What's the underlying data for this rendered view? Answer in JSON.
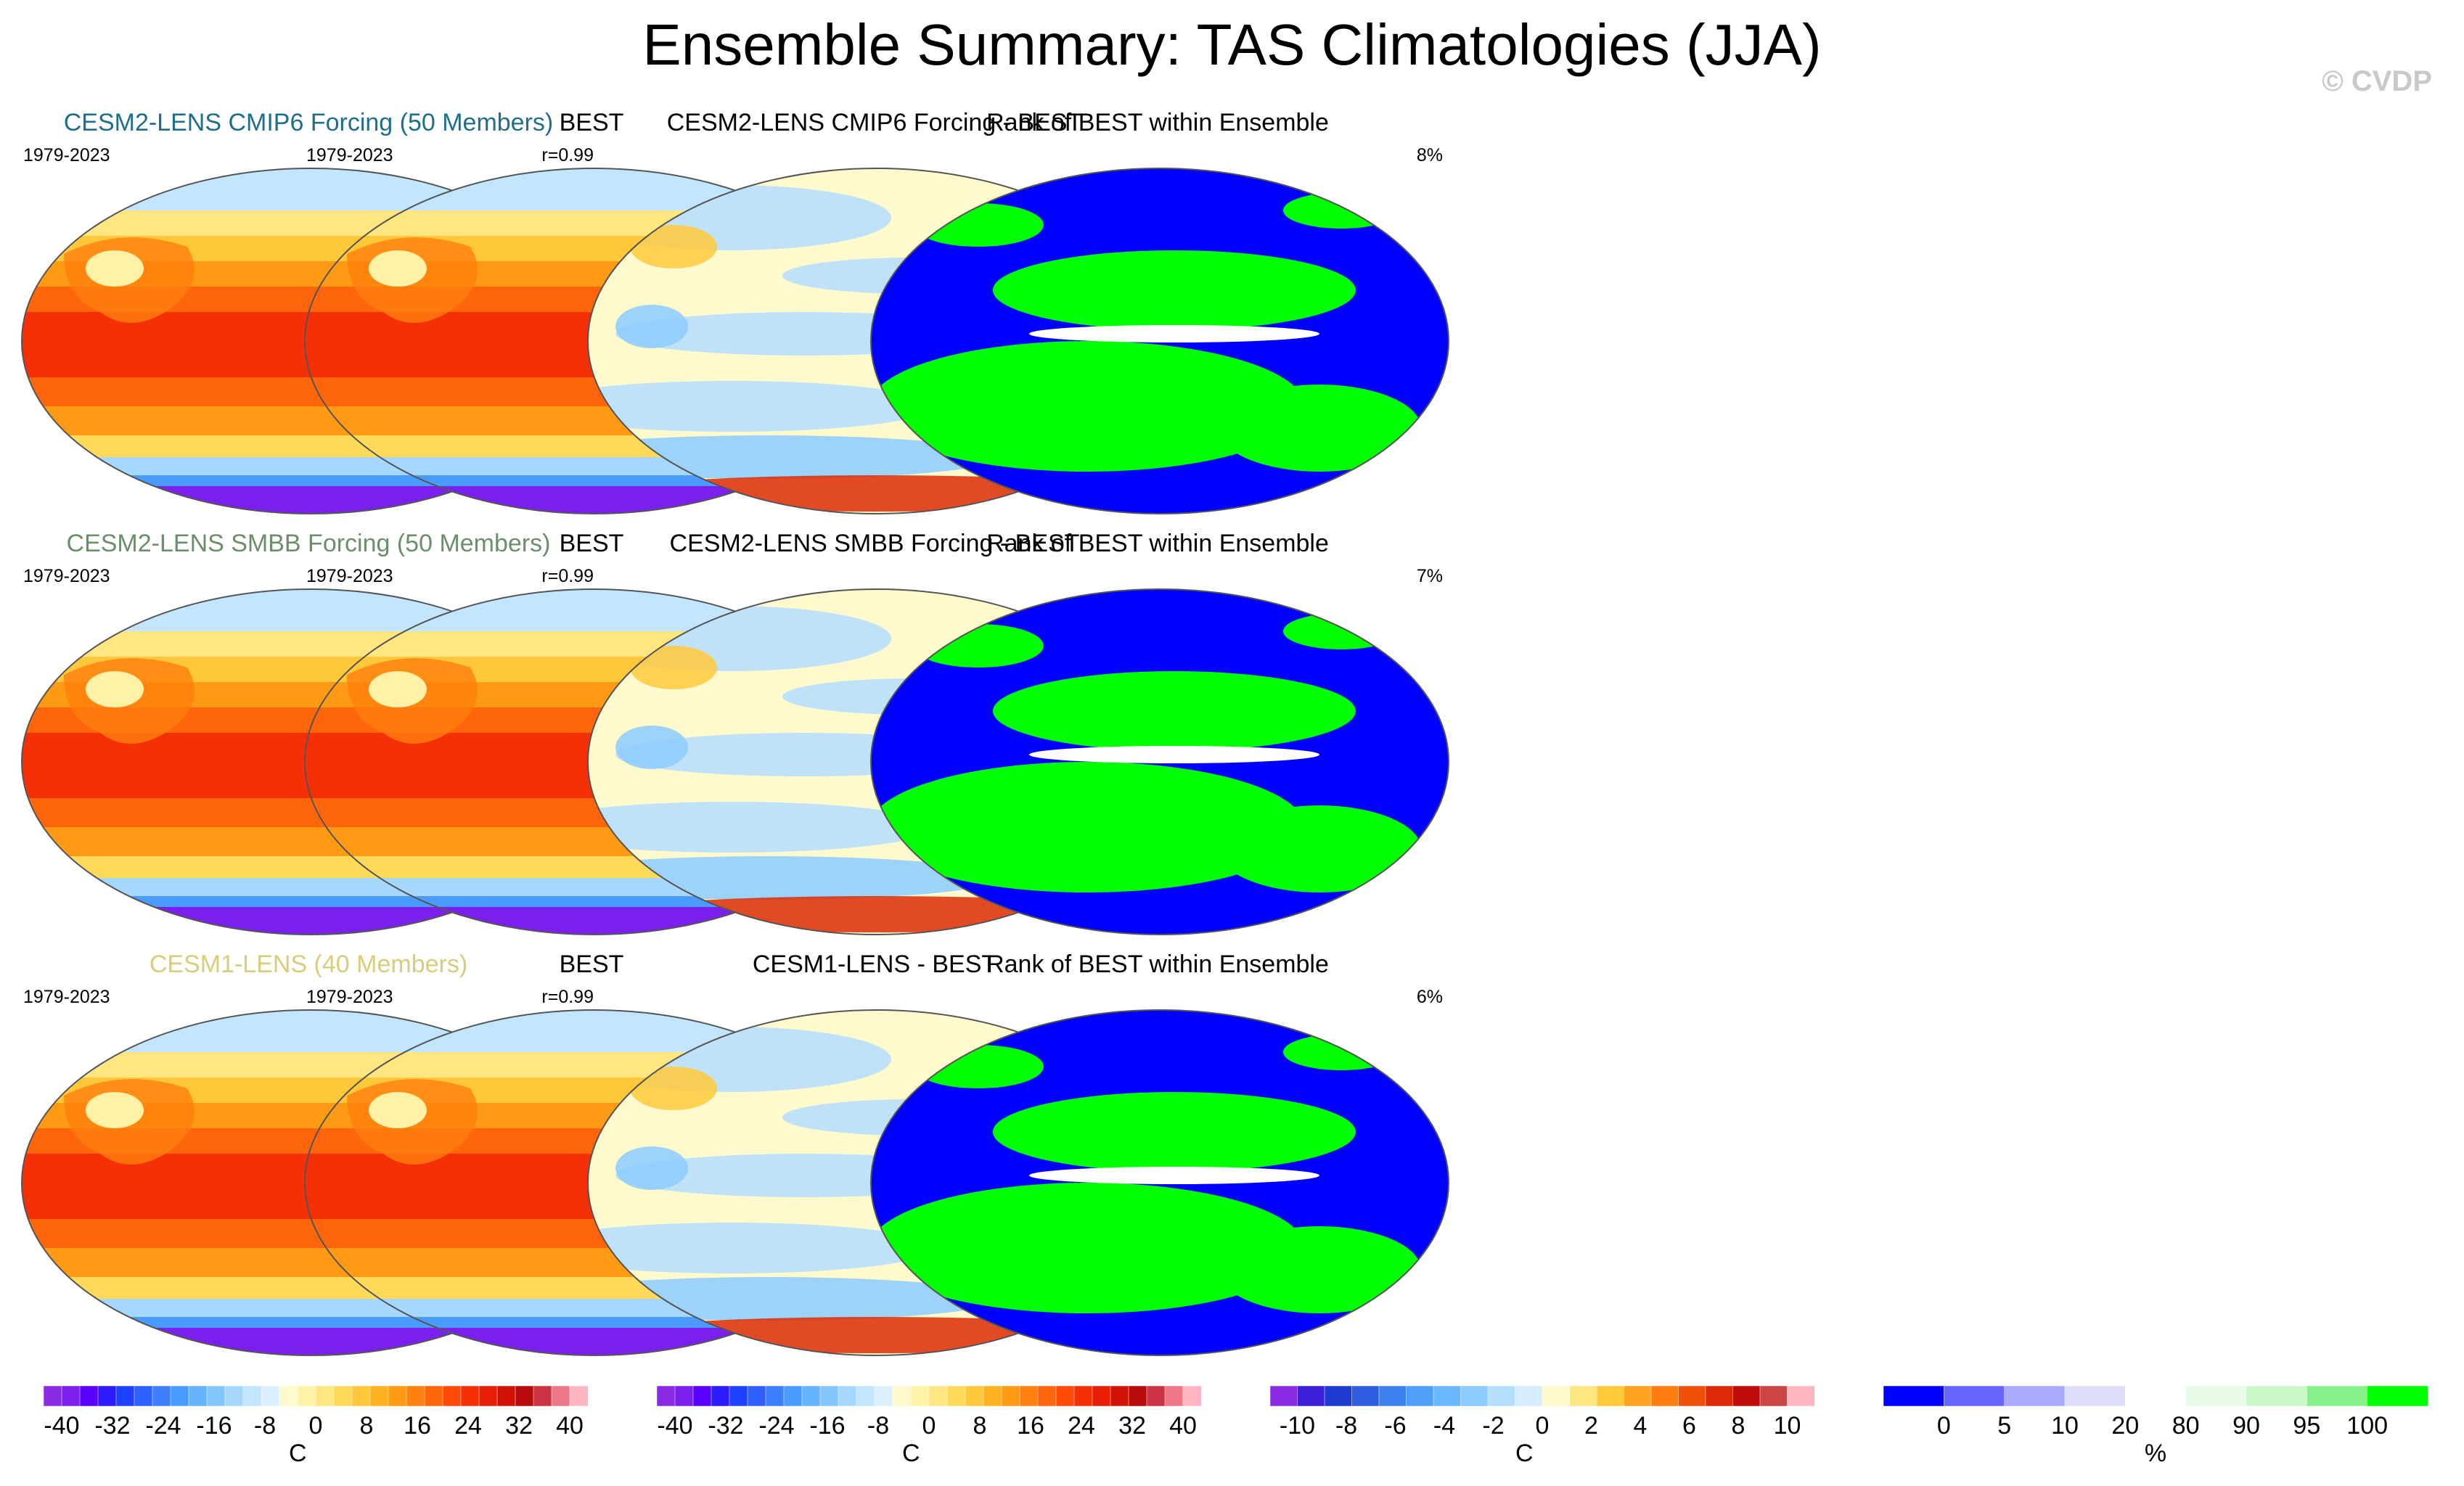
{
  "title": "Ensemble Summary: TAS Climatologies (JJA)",
  "watermark": "© CVDP",
  "panels": [
    {
      "title": "CESM2-LENS CMIP6 Forcing (50 Members)",
      "title_color": "#1f6f8b",
      "left": "1979-2023",
      "right": "r=0.99",
      "kind": "clim"
    },
    {
      "title": "BEST",
      "left": "1979-2023",
      "right": "",
      "kind": "clim"
    },
    {
      "title": "CESM2-LENS CMIP6 Forcing - BEST",
      "left": "",
      "right": "",
      "kind": "diff"
    },
    {
      "title": "Rank of BEST within Ensemble",
      "left": "",
      "right": "8%",
      "kind": "rank"
    },
    {
      "title": "CESM2-LENS SMBB Forcing (50 Members)",
      "title_color": "#6b8f6b",
      "left": "1979-2023",
      "right": "r=0.99",
      "kind": "clim"
    },
    {
      "title": "BEST",
      "left": "1979-2023",
      "right": "",
      "kind": "clim"
    },
    {
      "title": "CESM2-LENS SMBB Forcing - BEST",
      "left": "",
      "right": "",
      "kind": "diff"
    },
    {
      "title": "Rank of BEST within Ensemble",
      "left": "",
      "right": "7%",
      "kind": "rank"
    },
    {
      "title": "CESM1-LENS (40 Members)",
      "title_color": "#d9cc7a",
      "left": "1979-2023",
      "right": "r=0.99",
      "kind": "clim"
    },
    {
      "title": "BEST",
      "left": "1979-2023",
      "right": "",
      "kind": "clim"
    },
    {
      "title": "CESM1-LENS - BEST",
      "left": "",
      "right": "",
      "kind": "diff"
    },
    {
      "title": "Rank of BEST within Ensemble",
      "left": "",
      "right": "6%",
      "kind": "rank"
    }
  ],
  "colorbars": [
    {
      "name": "clim",
      "colors": [
        "#8a2be2",
        "#7b1fef",
        "#5a00ff",
        "#2c1cff",
        "#1e40ff",
        "#2f60ff",
        "#3f7fff",
        "#4a9bff",
        "#66b3ff",
        "#85c6ff",
        "#a6d8ff",
        "#c2e6ff",
        "#dcf0ff",
        "#fffacd",
        "#fff2a6",
        "#ffe680",
        "#ffd95a",
        "#ffc73a",
        "#ffb21f",
        "#ff9a14",
        "#ff800e",
        "#ff650a",
        "#ff4a08",
        "#f53006",
        "#e61e05",
        "#d01204",
        "#b80c0c",
        "#cc3344",
        "#ee7788",
        "#ffb6c1"
      ],
      "ticks": [
        "-40",
        "-32",
        "-24",
        "-16",
        "-8",
        "0",
        "8",
        "16",
        "24",
        "32",
        "40"
      ],
      "unit": "C"
    },
    {
      "name": "clim",
      "colors": [
        "#8a2be2",
        "#7b1fef",
        "#5a00ff",
        "#2c1cff",
        "#1e40ff",
        "#2f60ff",
        "#3f7fff",
        "#4a9bff",
        "#66b3ff",
        "#85c6ff",
        "#a6d8ff",
        "#c2e6ff",
        "#dcf0ff",
        "#fffacd",
        "#fff2a6",
        "#ffe680",
        "#ffd95a",
        "#ffc73a",
        "#ffb21f",
        "#ff9a14",
        "#ff800e",
        "#ff650a",
        "#ff4a08",
        "#f53006",
        "#e61e05",
        "#d01204",
        "#b80c0c",
        "#cc3344",
        "#ee7788",
        "#ffb6c1"
      ],
      "ticks": [
        "-40",
        "-32",
        "-24",
        "-16",
        "-8",
        "0",
        "8",
        "16",
        "24",
        "32",
        "40"
      ],
      "unit": "C"
    },
    {
      "name": "diff",
      "colors": [
        "#8a2be2",
        "#3a1fd6",
        "#1d3ccf",
        "#2f5fe0",
        "#3f80f0",
        "#4f9ef8",
        "#6ab8ff",
        "#8ccbff",
        "#b4ddff",
        "#d6ecff",
        "#fffacd",
        "#ffe680",
        "#ffc93a",
        "#ffa21f",
        "#ff7d10",
        "#f0500a",
        "#dd2a06",
        "#c10c0c",
        "#cc4444",
        "#ffb6c1"
      ],
      "ticks": [
        "-10",
        "-8",
        "-6",
        "-4",
        "-2",
        "0",
        "2",
        "4",
        "6",
        "8",
        "10"
      ],
      "unit": "C"
    },
    {
      "name": "rank",
      "colors": [
        "#0000ff",
        "#6666ff",
        "#aaaaff",
        "#dedefa",
        "#ffffff",
        "#e8fbe8",
        "#c8f8c8",
        "#88f088",
        "#00ff00"
      ],
      "ticks": [
        "0",
        "5",
        "10",
        "20",
        "80",
        "90",
        "95",
        "100"
      ],
      "unit": "%"
    }
  ]
}
